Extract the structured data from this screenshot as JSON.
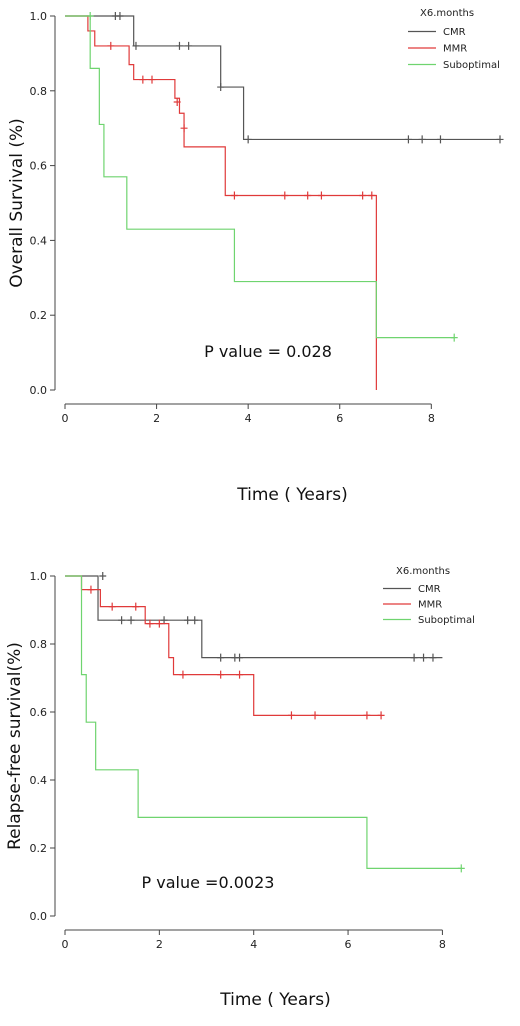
{
  "chart_data": [
    {
      "type": "line",
      "ylabel": "Overall Survival (%)",
      "xlabel": "Time ( Years)",
      "xlim": [
        0,
        9.5
      ],
      "ylim": [
        0,
        1.0
      ],
      "x_ticks": [
        "0",
        "2",
        "4",
        "6",
        "8"
      ],
      "y_ticks": [
        "0.0",
        "0.2",
        "0.4",
        "0.6",
        "0.8",
        "1.0"
      ],
      "legend_title": "X6.months",
      "legend_position": "top-right",
      "annotation": "P value = 0.028",
      "series": [
        {
          "name": "CMR",
          "color": "#555555",
          "steps": [
            [
              0,
              1.0
            ],
            [
              1.5,
              0.92
            ],
            [
              3.4,
              0.81
            ],
            [
              3.9,
              0.67
            ],
            [
              9.5,
              0.67
            ]
          ],
          "censors": [
            [
              1.1,
              1.0
            ],
            [
              1.2,
              1.0
            ],
            [
              1.55,
              0.92
            ],
            [
              2.5,
              0.92
            ],
            [
              2.7,
              0.92
            ],
            [
              3.4,
              0.81
            ],
            [
              4.0,
              0.67
            ],
            [
              7.5,
              0.67
            ],
            [
              7.8,
              0.67
            ],
            [
              8.2,
              0.67
            ],
            [
              9.5,
              0.67
            ]
          ]
        },
        {
          "name": "MMR",
          "color": "#e03a3a",
          "steps": [
            [
              0,
              1.0
            ],
            [
              0.5,
              0.96
            ],
            [
              0.65,
              0.92
            ],
            [
              1.4,
              0.87
            ],
            [
              1.5,
              0.83
            ],
            [
              2.4,
              0.78
            ],
            [
              2.5,
              0.74
            ],
            [
              2.6,
              0.65
            ],
            [
              3.5,
              0.52
            ],
            [
              6.8,
              0.52
            ],
            [
              6.8,
              0.0
            ]
          ],
          "censors": [
            [
              1.0,
              0.92
            ],
            [
              1.7,
              0.83
            ],
            [
              1.9,
              0.83
            ],
            [
              2.45,
              0.77
            ],
            [
              2.6,
              0.7
            ],
            [
              3.7,
              0.52
            ],
            [
              4.8,
              0.52
            ],
            [
              5.3,
              0.52
            ],
            [
              5.6,
              0.52
            ],
            [
              6.5,
              0.52
            ],
            [
              6.7,
              0.52
            ]
          ]
        },
        {
          "name": "Suboptimal",
          "color": "#6fd46f",
          "steps": [
            [
              0,
              1.0
            ],
            [
              0.55,
              0.86
            ],
            [
              0.75,
              0.71
            ],
            [
              0.85,
              0.57
            ],
            [
              1.35,
              0.43
            ],
            [
              3.7,
              0.29
            ],
            [
              6.8,
              0.14
            ],
            [
              8.5,
              0.14
            ]
          ],
          "censors": [
            [
              0.55,
              1.0
            ],
            [
              8.5,
              0.14
            ]
          ]
        }
      ]
    },
    {
      "type": "line",
      "ylabel": "Relapse-free survival(%)",
      "xlabel": "Time ( Years)",
      "xlim": [
        0,
        8.5
      ],
      "ylim": [
        0,
        1.0
      ],
      "x_ticks": [
        "0",
        "2",
        "4",
        "6",
        "8"
      ],
      "y_ticks": [
        "0.0",
        "0.2",
        "0.4",
        "0.6",
        "0.8",
        "1.0"
      ],
      "legend_title": "X6.months",
      "legend_position": "top-right",
      "annotation": "P value =0.0023",
      "series": [
        {
          "name": "CMR",
          "color": "#555555",
          "steps": [
            [
              0,
              1.0
            ],
            [
              0.7,
              0.87
            ],
            [
              2.9,
              0.76
            ],
            [
              8.0,
              0.76
            ]
          ],
          "censors": [
            [
              0.8,
              1.0
            ],
            [
              1.2,
              0.87
            ],
            [
              1.4,
              0.87
            ],
            [
              2.1,
              0.87
            ],
            [
              2.6,
              0.87
            ],
            [
              2.75,
              0.87
            ],
            [
              3.3,
              0.76
            ],
            [
              3.6,
              0.76
            ],
            [
              3.7,
              0.76
            ],
            [
              7.4,
              0.76
            ],
            [
              7.6,
              0.76
            ],
            [
              7.8,
              0.76
            ]
          ]
        },
        {
          "name": "MMR",
          "color": "#e03a3a",
          "steps": [
            [
              0,
              1.0
            ],
            [
              0.35,
              0.96
            ],
            [
              0.75,
              0.91
            ],
            [
              1.7,
              0.86
            ],
            [
              2.2,
              0.76
            ],
            [
              2.3,
              0.71
            ],
            [
              4.0,
              0.59
            ],
            [
              6.7,
              0.59
            ]
          ],
          "censors": [
            [
              0.55,
              0.96
            ],
            [
              1.0,
              0.91
            ],
            [
              1.5,
              0.91
            ],
            [
              1.8,
              0.86
            ],
            [
              2.0,
              0.86
            ],
            [
              2.5,
              0.71
            ],
            [
              3.3,
              0.71
            ],
            [
              3.7,
              0.71
            ],
            [
              4.8,
              0.59
            ],
            [
              5.3,
              0.59
            ],
            [
              6.4,
              0.59
            ],
            [
              6.7,
              0.59
            ]
          ]
        },
        {
          "name": "Suboptimal",
          "color": "#6fd46f",
          "steps": [
            [
              0,
              1.0
            ],
            [
              0.35,
              0.71
            ],
            [
              0.45,
              0.57
            ],
            [
              0.65,
              0.43
            ],
            [
              1.55,
              0.29
            ],
            [
              6.4,
              0.14
            ],
            [
              8.4,
              0.14
            ]
          ],
          "censors": [
            [
              8.4,
              0.14
            ]
          ]
        }
      ]
    }
  ]
}
